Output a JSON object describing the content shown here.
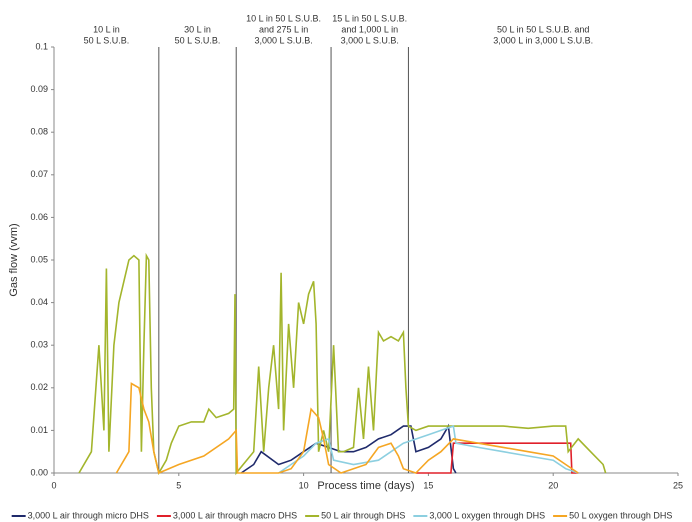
{
  "chart_data": {
    "type": "line",
    "xlabel": "Process time (days)",
    "ylabel": "Gas flow (vvm)",
    "xlim": [
      0,
      25
    ],
    "ylim": [
      0,
      0.1
    ],
    "xticks": [
      0,
      5,
      10,
      15,
      20,
      25
    ],
    "yticks": [
      {
        "value": 0,
        "label": "0.00"
      },
      0.01,
      0.02,
      0.03,
      0.04,
      0.05,
      0.06,
      0.07,
      0.08,
      0.09,
      0.1
    ],
    "dividers": [
      4.2,
      7.3,
      11.1,
      14.2
    ],
    "stages": [
      {
        "x": 2.1,
        "lines": [
          "10 L in",
          "50 L S.U.B."
        ]
      },
      {
        "x": 5.75,
        "lines": [
          "30 L in",
          "50 L S.U.B."
        ]
      },
      {
        "x": 9.2,
        "lines": [
          "10 L in 50 L S.U.B.",
          "and  275 L in",
          "3,000 L S.U.B."
        ]
      },
      {
        "x": 12.65,
        "lines": [
          "15 L in 50 L S.U.B.",
          "and 1,000 L in",
          "3,000 L S.U.B."
        ]
      },
      {
        "x": 19.6,
        "lines": [
          "50 L in 50 L S.U.B. and",
          "3,000 L in 3,000 L S.U.B."
        ]
      }
    ],
    "legend": "bottom",
    "series": [
      {
        "name": "3,000 L air through micro DHS",
        "color": "#1f2a6b",
        "x": [
          7.5,
          8.0,
          8.3,
          9.0,
          9.5,
          10.0,
          10.5,
          11.0,
          11.5,
          12.0,
          12.5,
          13.0,
          13.5,
          14.0,
          14.3,
          14.5,
          15.0,
          15.5,
          15.8,
          16.0,
          16.1
        ],
        "values": [
          0,
          0.002,
          0.005,
          0.002,
          0.003,
          0.005,
          0.007,
          0.006,
          0.005,
          0.005,
          0.006,
          0.008,
          0.009,
          0.011,
          0.011,
          0.005,
          0.006,
          0.008,
          0.011,
          0.001,
          0
        ]
      },
      {
        "name": "3,000 L air through macro DHS",
        "color": "#e0202a",
        "x": [
          14.5,
          15.9,
          16.0,
          20.0,
          20.7,
          20.75,
          21.0
        ],
        "values": [
          0,
          0,
          0.007,
          0.007,
          0.007,
          0,
          0
        ]
      },
      {
        "name": "50 L air through DHS",
        "color": "#a3b52c",
        "x": [
          1.0,
          1.5,
          1.8,
          2.0,
          2.1,
          2.2,
          2.4,
          2.6,
          2.8,
          3.0,
          3.2,
          3.4,
          3.5,
          3.6,
          3.7,
          3.8,
          3.9,
          4.0,
          4.2,
          4.5,
          4.7,
          5.0,
          5.5,
          6.0,
          6.2,
          6.5,
          7.0,
          7.2,
          7.25,
          7.3,
          8.0,
          8.2,
          8.4,
          8.6,
          8.8,
          9.0,
          9.1,
          9.2,
          9.4,
          9.6,
          9.8,
          10.0,
          10.2,
          10.4,
          10.5,
          10.6,
          10.8,
          11.0,
          11.2,
          11.4,
          11.6,
          12.0,
          12.2,
          12.4,
          12.6,
          12.8,
          13.0,
          13.2,
          13.5,
          13.8,
          14.0,
          14.1,
          14.2,
          14.5,
          15.0,
          16.0,
          17.0,
          18.0,
          19.0,
          20.0,
          20.5,
          20.6,
          21.0,
          21.5,
          22.0,
          22.1
        ],
        "values": [
          0,
          0.005,
          0.03,
          0.01,
          0.048,
          0.005,
          0.03,
          0.04,
          0.045,
          0.05,
          0.051,
          0.05,
          0.005,
          0.03,
          0.051,
          0.05,
          0.02,
          0.005,
          0,
          0.003,
          0.007,
          0.011,
          0.012,
          0.012,
          0.015,
          0.013,
          0.014,
          0.015,
          0.042,
          0,
          0.005,
          0.025,
          0.005,
          0.02,
          0.03,
          0.015,
          0.047,
          0.01,
          0.035,
          0.02,
          0.04,
          0.035,
          0.042,
          0.045,
          0.035,
          0.005,
          0.01,
          0.005,
          0.03,
          0.005,
          0.005,
          0.006,
          0.02,
          0.008,
          0.025,
          0.01,
          0.033,
          0.031,
          0.032,
          0.031,
          0.033,
          0.02,
          0.011,
          0.01,
          0.011,
          0.011,
          0.011,
          0.011,
          0.0105,
          0.011,
          0.011,
          0.005,
          0.008,
          0.005,
          0.002,
          0
        ]
      },
      {
        "name": "3,000 L oxygen through DHS",
        "color": "#8ccfe0",
        "x": [
          9.0,
          9.5,
          10.0,
          10.5,
          11.0,
          11.2,
          12.0,
          13.0,
          14.0,
          15.0,
          15.5,
          16.0,
          16.1,
          17.0,
          18.0,
          19.0,
          20.0,
          20.5,
          21.0
        ],
        "values": [
          0,
          0.002,
          0.004,
          0.007,
          0.008,
          0.003,
          0.002,
          0.003,
          0.007,
          0.009,
          0.01,
          0.011,
          0.007,
          0.006,
          0.005,
          0.004,
          0.003,
          0.001,
          0
        ]
      },
      {
        "name": "50 L oxygen through DHS",
        "color": "#f5a623",
        "x": [
          2.5,
          3.0,
          3.1,
          3.4,
          3.6,
          3.8,
          4.0,
          4.2,
          5.0,
          6.0,
          7.0,
          7.3,
          7.35,
          9.0,
          9.5,
          10.0,
          10.3,
          10.6,
          10.8,
          11.0,
          11.5,
          12.5,
          13.0,
          13.5,
          13.8,
          14.0,
          14.5,
          15.0,
          15.5,
          16.0,
          17.0,
          18.0,
          19.0,
          20.0,
          20.5,
          21.0
        ],
        "values": [
          0,
          0.005,
          0.021,
          0.02,
          0.015,
          0.012,
          0.005,
          0,
          0.002,
          0.004,
          0.008,
          0.01,
          0,
          0,
          0.001,
          0.005,
          0.015,
          0.013,
          0.008,
          0.002,
          0,
          0.002,
          0.006,
          0.007,
          0.004,
          0.001,
          0,
          0.003,
          0.005,
          0.008,
          0.007,
          0.006,
          0.005,
          0.004,
          0.002,
          0
        ]
      }
    ]
  }
}
